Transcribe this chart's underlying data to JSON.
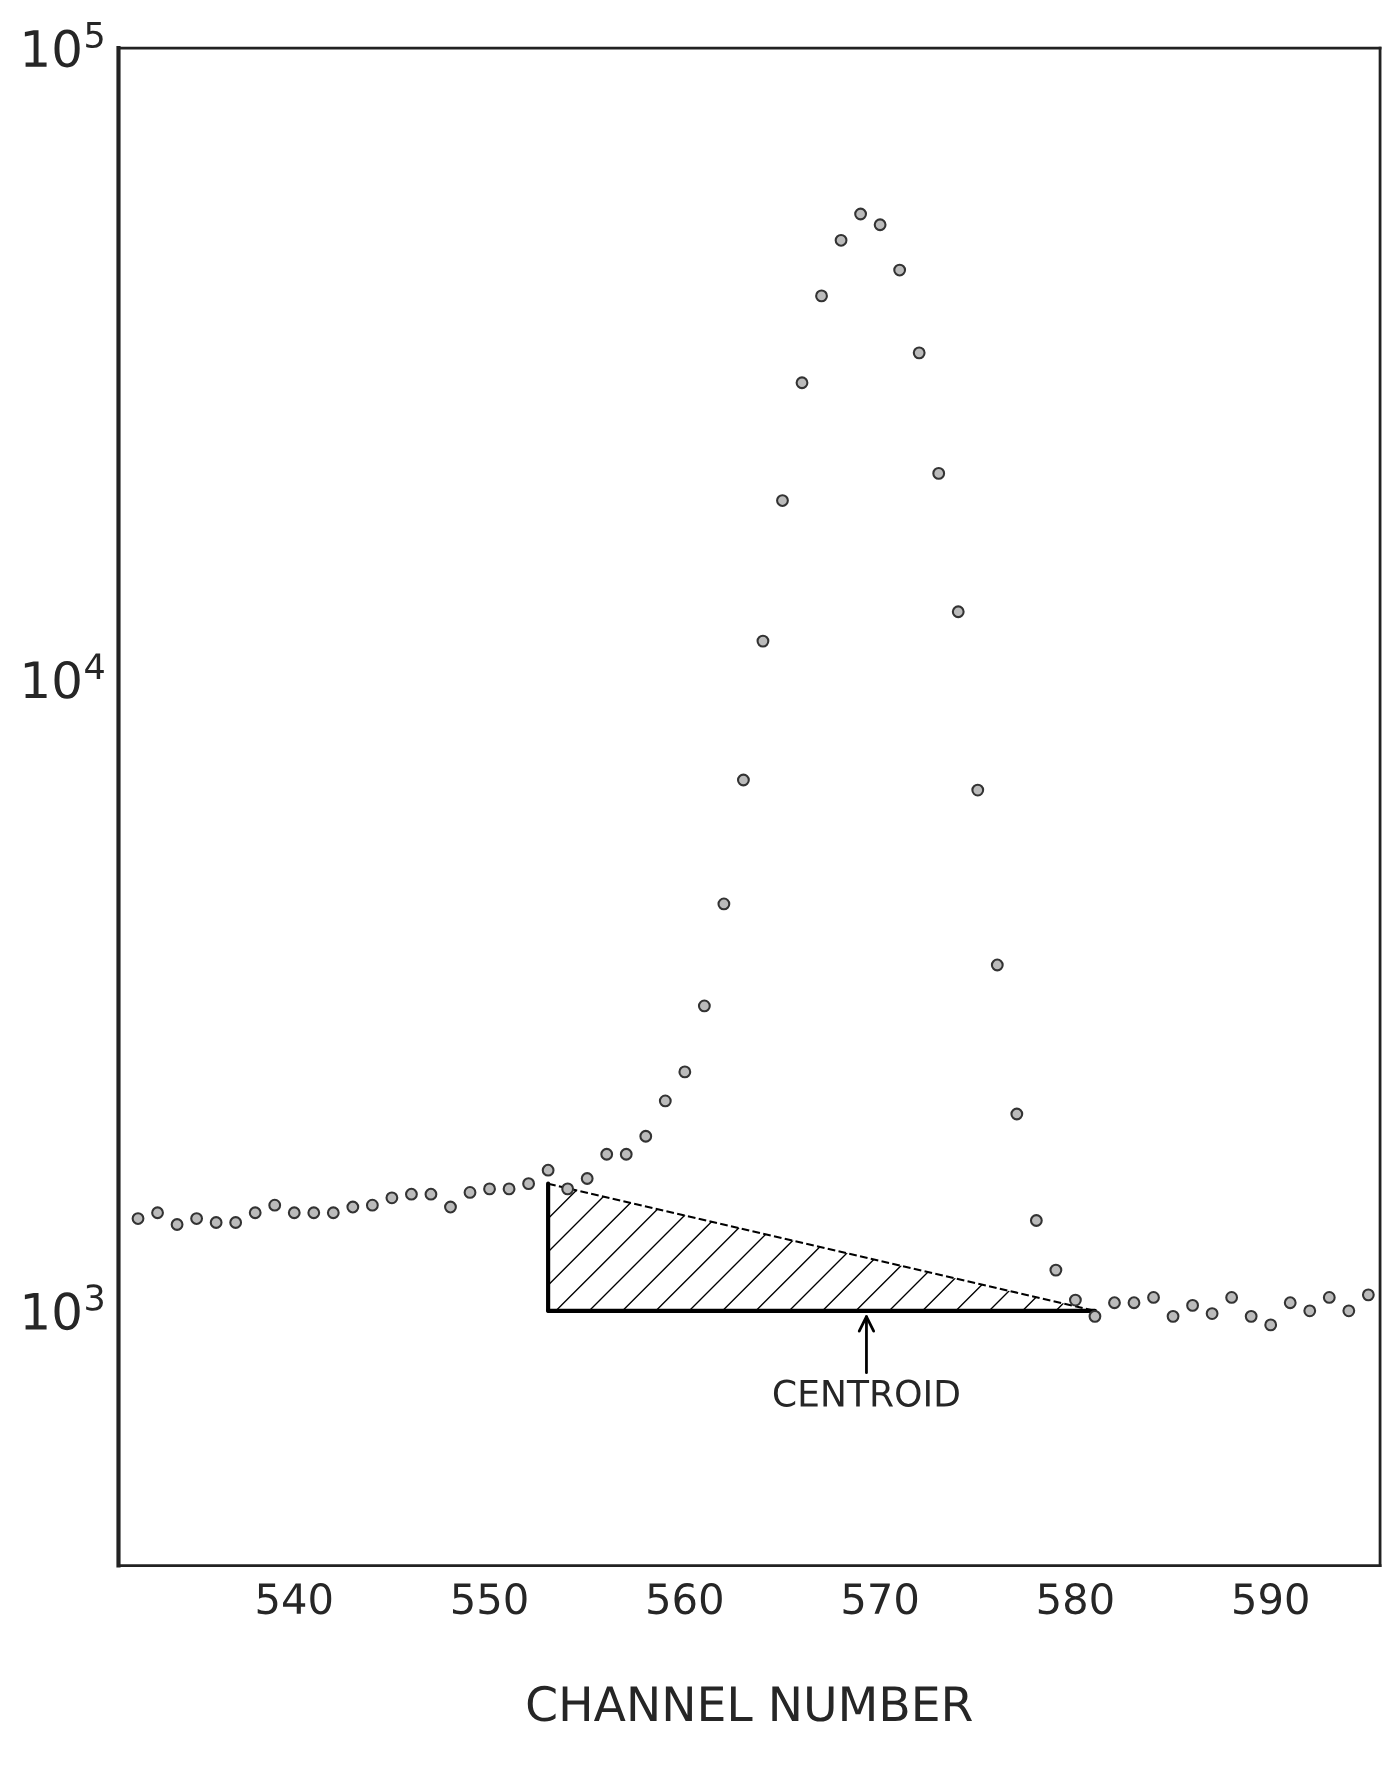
{
  "chart_data": {
    "type": "scatter",
    "xlabel": "CHANNEL NUMBER",
    "log": "y",
    "grid": false,
    "legend": false,
    "xlim": [
      531,
      595.6
    ],
    "xticks": [
      540,
      550,
      560,
      570,
      580,
      590
    ],
    "ylim": [
      395,
      100000
    ],
    "yticks": [
      {
        "value": 1000,
        "label": "10$^{3}$"
      },
      {
        "value": 10000,
        "label": "10$^{4}$"
      },
      {
        "value": 100000,
        "label": "10$^{5}$"
      }
    ],
    "series": [
      {
        "color": "#333333",
        "marker": "circle",
        "x": [
          532,
          533,
          534,
          535,
          536,
          537,
          538,
          539,
          540,
          541,
          542,
          543,
          544,
          545,
          546,
          547,
          548,
          549,
          550,
          551,
          552,
          553,
          554,
          555,
          556,
          557,
          558,
          559,
          560,
          561,
          562,
          563,
          564,
          565,
          566,
          567,
          568,
          569,
          570,
          571,
          572,
          573,
          574,
          575,
          576,
          577,
          578,
          579,
          580,
          581,
          582,
          583,
          584,
          585,
          586,
          587,
          588,
          589,
          590,
          591,
          592,
          593,
          594,
          595
        ],
        "values": [
          1400,
          1430,
          1370,
          1400,
          1380,
          1380,
          1430,
          1470,
          1430,
          1430,
          1430,
          1460,
          1470,
          1510,
          1530,
          1530,
          1460,
          1540,
          1560,
          1560,
          1590,
          1670,
          1560,
          1620,
          1770,
          1770,
          1890,
          2150,
          2390,
          3040,
          4410,
          6930,
          11500,
          19200,
          29500,
          40500,
          49600,
          54600,
          52500,
          44500,
          32900,
          21200,
          12800,
          6680,
          3530,
          2050,
          1390,
          1160,
          1040,
          980,
          1030,
          1030,
          1050,
          980,
          1020,
          990,
          1050,
          980,
          950,
          1030,
          1000,
          1050,
          1000,
          1060
        ]
      },
      {
        "type": "line",
        "color": "#000000",
        "line_style": "dashed",
        "x": [
          553,
          581
        ],
        "values": [
          1590,
          1000
        ]
      },
      {
        "type": "line",
        "color": "#000000",
        "line_style": "solid",
        "x": [
          553,
          581
        ],
        "values": [
          1000,
          1000
        ]
      },
      {
        "type": "line",
        "color": "#000000",
        "line_style": "solid",
        "x": [
          553,
          553
        ],
        "values": [
          1000,
          1590
        ]
      }
    ],
    "annotations": [
      {
        "text": "CENTROID",
        "x": 569.3,
        "y": 1000
      }
    ]
  }
}
